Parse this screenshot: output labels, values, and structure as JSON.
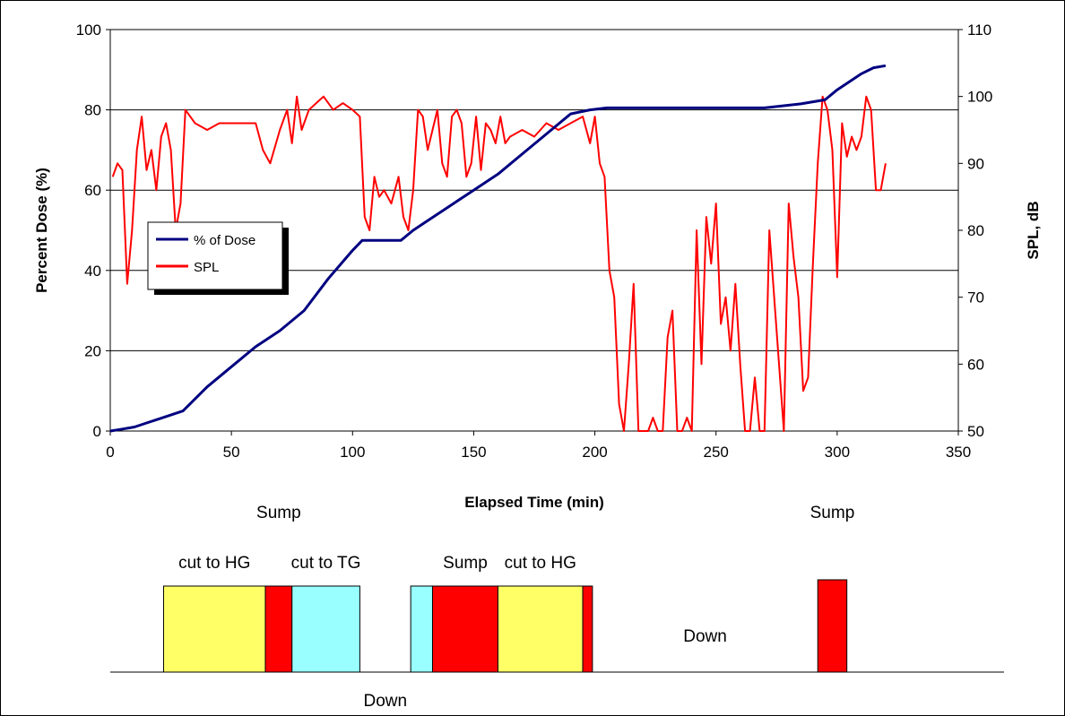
{
  "chart_data": {
    "type": "line",
    "xlabel": "Elapsed Time (min)",
    "ylabel_left": "Percent Dose (%)",
    "ylabel_right": "SPL, dB",
    "xlim": [
      0,
      350
    ],
    "xticks": [
      0,
      50,
      100,
      150,
      200,
      250,
      300,
      350
    ],
    "ylim_left": [
      0,
      100
    ],
    "yticks_left": [
      0,
      20,
      40,
      60,
      80,
      100
    ],
    "ylim_right": [
      50,
      110
    ],
    "yticks_right": [
      50,
      60,
      70,
      80,
      90,
      100,
      110
    ],
    "grid": "horizontal",
    "legend_position": "left",
    "legend": [
      "% of Dose",
      "SPL"
    ],
    "colors": {
      "dose": "#000080",
      "spl": "#ff0000",
      "cut": "#ffff66",
      "sump": "#ff0000",
      "tg": "#99ffff"
    },
    "series": [
      {
        "name": "% of Dose",
        "axis": "left",
        "color": "#000080",
        "x": [
          0,
          5,
          10,
          15,
          20,
          30,
          40,
          50,
          60,
          70,
          80,
          90,
          100,
          104,
          110,
          120,
          125,
          130,
          140,
          150,
          160,
          170,
          180,
          190,
          198,
          205,
          210,
          240,
          270,
          285,
          295,
          300,
          310,
          315,
          320
        ],
        "y": [
          0,
          0.5,
          1,
          2,
          3,
          5,
          11,
          16,
          21,
          25,
          30,
          38,
          45,
          47.5,
          47.5,
          47.5,
          50,
          52,
          56,
          60,
          64,
          69,
          74,
          79,
          80,
          80.5,
          80.5,
          80.5,
          80.5,
          81.5,
          82.5,
          85,
          89,
          90.5,
          91
        ]
      },
      {
        "name": "SPL",
        "axis": "right",
        "color": "#ff0000",
        "x": [
          1,
          3,
          5,
          7,
          9,
          11,
          13,
          15,
          17,
          19,
          21,
          23,
          25,
          27,
          29,
          31,
          33,
          35,
          40,
          45,
          50,
          55,
          60,
          63,
          66,
          70,
          73,
          75,
          77,
          79,
          82,
          85,
          88,
          92,
          96,
          100,
          103,
          105,
          107,
          109,
          111,
          113,
          116,
          119,
          121,
          123,
          125,
          127,
          129,
          131,
          133,
          135,
          137,
          139,
          141,
          143,
          145,
          147,
          149,
          151,
          153,
          155,
          157,
          159,
          161,
          163,
          165,
          170,
          175,
          180,
          185,
          190,
          195,
          198,
          200,
          202,
          204,
          206,
          208,
          210,
          212,
          214,
          216,
          218,
          220,
          222,
          224,
          226,
          228,
          230,
          232,
          234,
          236,
          238,
          240,
          242,
          244,
          246,
          248,
          250,
          252,
          254,
          256,
          258,
          260,
          262,
          264,
          266,
          268,
          270,
          272,
          274,
          276,
          278,
          280,
          282,
          284,
          286,
          288,
          290,
          292,
          294,
          296,
          298,
          300,
          302,
          304,
          306,
          308,
          310,
          312,
          314,
          316,
          318,
          320
        ],
        "y": [
          88,
          90,
          89,
          72,
          80,
          92,
          97,
          89,
          92,
          86,
          94,
          96,
          92,
          80,
          84,
          98,
          97,
          96,
          95,
          96,
          96,
          96,
          96,
          92,
          90,
          95,
          98,
          93,
          100,
          95,
          98,
          99,
          100,
          98,
          99,
          98,
          97,
          82,
          80,
          88,
          85,
          86,
          84,
          88,
          82,
          80,
          86,
          98,
          97,
          92,
          95,
          98,
          90,
          88,
          97,
          98,
          96,
          88,
          90,
          97,
          89,
          96,
          95,
          93,
          97,
          93,
          94,
          95,
          94,
          96,
          95,
          96,
          97,
          93,
          97,
          90,
          88,
          74,
          70,
          54,
          46,
          60,
          72,
          45,
          48,
          44,
          52,
          40,
          42,
          64,
          68,
          40,
          48,
          52,
          44,
          80,
          60,
          82,
          75,
          84,
          66,
          70,
          62,
          72,
          60,
          50,
          44,
          58,
          40,
          46,
          80,
          70,
          60,
          48,
          84,
          76,
          70,
          56,
          58,
          75,
          90,
          100,
          98,
          92,
          73,
          96,
          91,
          94,
          92,
          94,
          100,
          98,
          86,
          86,
          90
        ]
      }
    ],
    "activities": [
      {
        "label": "cut to HG",
        "type": "cut",
        "start": 22,
        "end": 64,
        "label_row": "mid"
      },
      {
        "label": "Sump",
        "type": "sump",
        "start": 64,
        "end": 75,
        "label_row": "top"
      },
      {
        "label": "cut to TG",
        "type": "tg",
        "start": 75,
        "end": 103,
        "label_row": "mid"
      },
      {
        "label": "Down",
        "type": "down",
        "start": 103,
        "end": 124,
        "label_row": "bottom"
      },
      {
        "label": "",
        "type": "tg",
        "start": 124,
        "end": 133,
        "label_row": "none"
      },
      {
        "label": "Sump",
        "type": "sump",
        "start": 133,
        "end": 160,
        "label_row": "mid"
      },
      {
        "label": "cut to HG",
        "type": "cut",
        "start": 160,
        "end": 195,
        "label_row": "mid"
      },
      {
        "label": "",
        "type": "sump",
        "start": 195,
        "end": 199,
        "label_row": "none"
      },
      {
        "label": "Down",
        "type": "down",
        "start": 199,
        "end": 292,
        "label_row": "low"
      },
      {
        "label": "Sump",
        "type": "sump",
        "start": 292,
        "end": 304,
        "label_row": "top"
      }
    ]
  }
}
